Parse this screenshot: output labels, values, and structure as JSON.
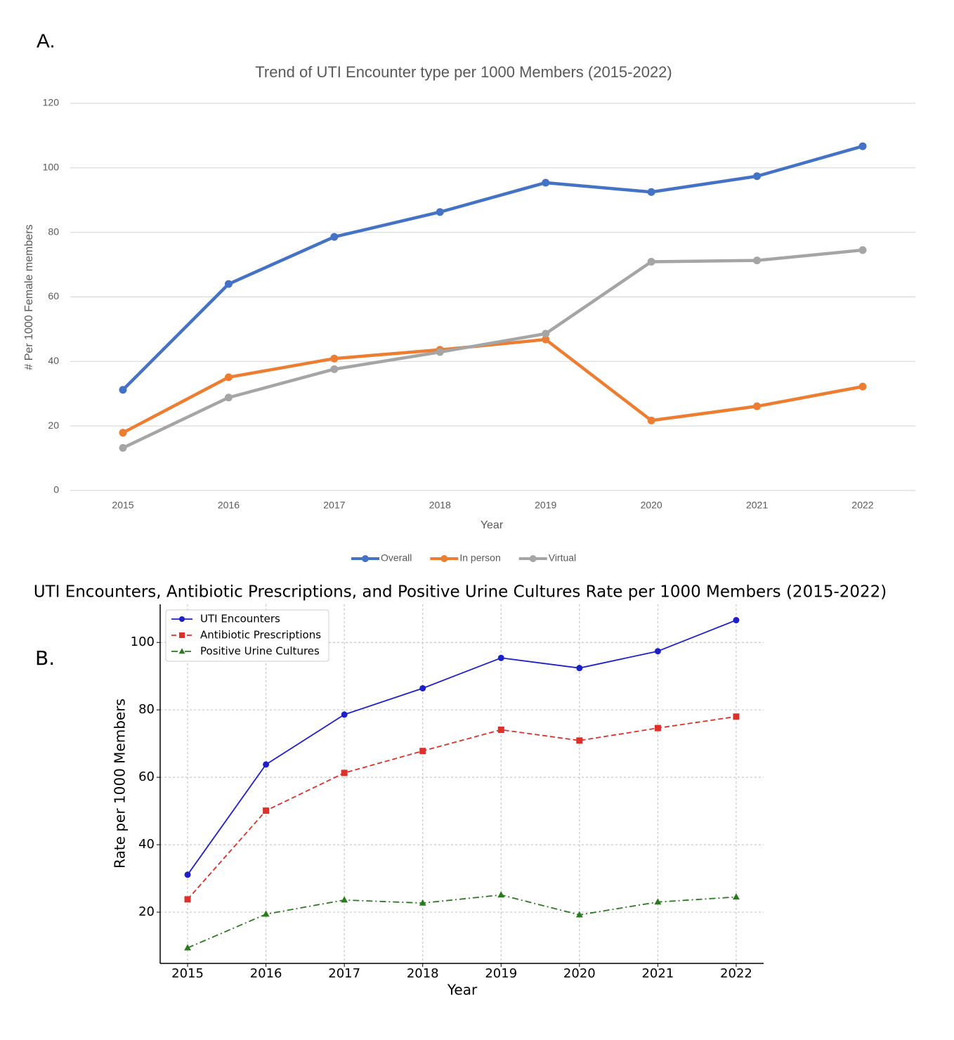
{
  "chart_data": [
    {
      "type": "line",
      "panel_label": "A.",
      "title": "Trend of UTI Encounter type per 1000 Members (2015-2022)",
      "x_label": "Year",
      "y_label": "# Per 1000 Female members",
      "categories": [
        "2015",
        "2016",
        "2017",
        "2018",
        "2019",
        "2020",
        "2021",
        "2022"
      ],
      "series": [
        {
          "name": "Overall",
          "color": "#4472c4",
          "linestyle": "solid",
          "marker": "circle",
          "values": [
            31.2,
            64.0,
            78.6,
            86.3,
            95.4,
            92.5,
            97.4,
            106.7
          ]
        },
        {
          "name": "In person",
          "color": "#ed7d31",
          "linestyle": "solid",
          "marker": "circle",
          "values": [
            17.9,
            35.1,
            40.9,
            43.6,
            46.8,
            21.7,
            26.1,
            32.2
          ]
        },
        {
          "name": "Virtual",
          "color": "#a5a5a5",
          "linestyle": "solid",
          "marker": "circle",
          "values": [
            13.2,
            28.8,
            37.6,
            42.9,
            48.6,
            70.9,
            71.3,
            74.5
          ]
        }
      ],
      "ylim": [
        0,
        120
      ],
      "yticks": [
        0,
        20,
        40,
        60,
        80,
        100,
        120
      ],
      "grid": true,
      "legend": "bottom"
    },
    {
      "type": "line",
      "panel_label": "B.",
      "title": "UTI Encounters, Antibiotic Prescriptions, and Positive Urine Cultures Rate per 1000 Members (2015-2022)",
      "x_label": "Year",
      "y_label": "Rate per 1000 Members",
      "x": [
        2015,
        2016,
        2017,
        2018,
        2019,
        2020,
        2021,
        2022
      ],
      "series": [
        {
          "name": "UTI Encounters",
          "color": "#1f1fc8",
          "linestyle": "solid",
          "marker": "circle",
          "values": [
            31.1,
            63.8,
            78.6,
            86.4,
            95.4,
            92.4,
            97.4,
            106.6
          ]
        },
        {
          "name": "Antibiotic Prescriptions",
          "color": "#dc3028",
          "linestyle": "dashed",
          "marker": "square",
          "values": [
            23.8,
            50.1,
            61.3,
            67.8,
            74.1,
            70.9,
            74.6,
            78.0
          ]
        },
        {
          "name": "Positive Urine Cultures",
          "color": "#2a7a1f",
          "linestyle": "dashdot",
          "marker": "triangle",
          "values": [
            9.4,
            19.4,
            23.6,
            22.7,
            25.1,
            19.2,
            23.0,
            24.5
          ]
        }
      ],
      "xlim": [
        2014.65,
        2022.35
      ],
      "xticks": [
        2015,
        2016,
        2017,
        2018,
        2019,
        2020,
        2021,
        2022
      ],
      "ylim": [
        4.8,
        111.3
      ],
      "yticks": [
        20,
        40,
        60,
        80,
        100
      ],
      "grid": true,
      "legend": "upper left"
    }
  ]
}
